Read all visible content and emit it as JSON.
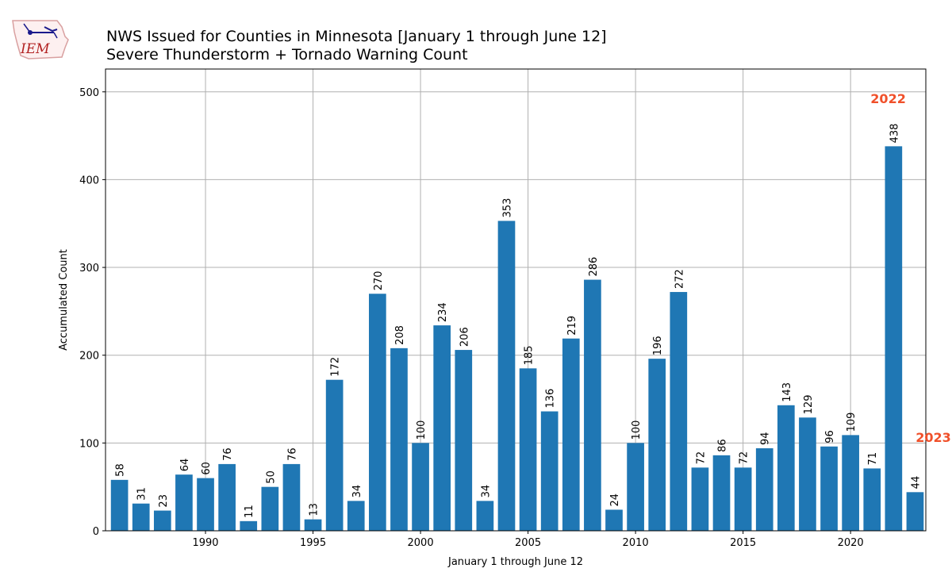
{
  "logo": {
    "text": "IEM",
    "color": "#b22222"
  },
  "chart_data": {
    "type": "bar",
    "title": "NWS Issued for Counties in Minnesota [January 1 through June 12]",
    "subtitle": "Severe Thunderstorm + Tornado Warning Count",
    "xlabel": "January 1 through June 12",
    "ylabel": "Accumulated Count",
    "x": [
      1986,
      1987,
      1988,
      1989,
      1990,
      1991,
      1992,
      1993,
      1994,
      1995,
      1996,
      1997,
      1998,
      1999,
      2000,
      2001,
      2002,
      2003,
      2004,
      2005,
      2006,
      2007,
      2008,
      2009,
      2010,
      2011,
      2012,
      2013,
      2014,
      2015,
      2016,
      2017,
      2018,
      2019,
      2020,
      2021,
      2022,
      2023
    ],
    "values": [
      58,
      31,
      23,
      64,
      60,
      76,
      11,
      50,
      76,
      13,
      172,
      34,
      270,
      208,
      100,
      234,
      206,
      34,
      353,
      185,
      136,
      219,
      286,
      24,
      100,
      196,
      272,
      72,
      86,
      72,
      94,
      143,
      129,
      96,
      109,
      71,
      438,
      44
    ],
    "xlim": [
      1985.35,
      2023.5
    ],
    "ylim": [
      0,
      526
    ],
    "xticks": [
      1990,
      1995,
      2000,
      2005,
      2010,
      2015,
      2020
    ],
    "yticks": [
      0,
      100,
      200,
      300,
      400,
      500
    ],
    "grid": true,
    "bar_color": "#1f77b4",
    "data_labels": "rotated-vertical",
    "annotations": [
      {
        "text": "2022",
        "x": 2021.75,
        "y": 487,
        "color": "#f0502a"
      },
      {
        "text": "2023",
        "x": 2023.85,
        "y": 101,
        "color": "#f0502a"
      }
    ]
  }
}
